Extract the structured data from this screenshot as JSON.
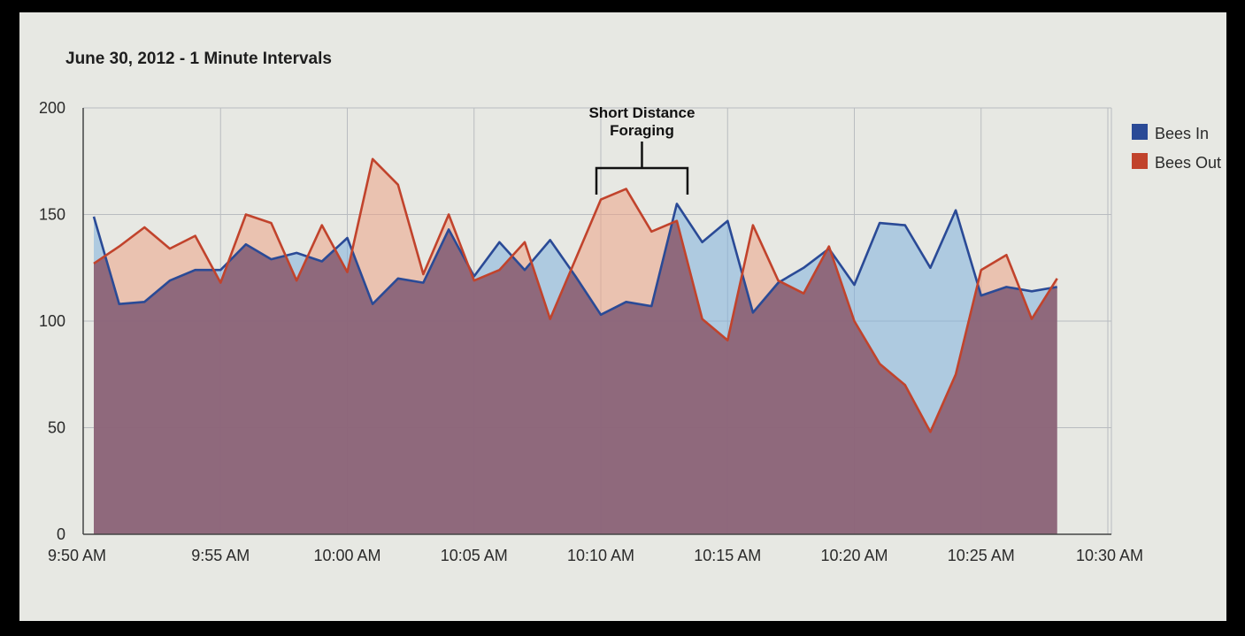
{
  "chart_data": {
    "type": "area",
    "title": "June 30, 2012 - 1 Minute Intervals",
    "xlabel": "",
    "ylabel": "",
    "ylim": [
      0,
      200
    ],
    "yticks": [
      0,
      50,
      100,
      150,
      200
    ],
    "xtick_labels": [
      "9:50 AM",
      "9:55 AM",
      "10:00 AM",
      "10:05 AM",
      "10:10 AM",
      "10:15 AM",
      "10:20 AM",
      "10:25 AM",
      "10:30 AM"
    ],
    "x_minutes_start": "9:50 AM",
    "x_interval_minutes": 1,
    "grid": true,
    "legend_position": "right",
    "series": [
      {
        "name": "Bees In",
        "color": "#2a4a96",
        "fill": "#7fb0de",
        "values": [
          149,
          108,
          109,
          119,
          124,
          124,
          136,
          129,
          132,
          128,
          139,
          108,
          120,
          118,
          143,
          121,
          137,
          124,
          138,
          121,
          103,
          109,
          107,
          155,
          137,
          147,
          104,
          118,
          125,
          134,
          117,
          146,
          145,
          125,
          152,
          112,
          116,
          114,
          116
        ]
      },
      {
        "name": "Bees Out",
        "color": "#c1432c",
        "fill": "#eda287",
        "values": [
          127,
          135,
          144,
          134,
          140,
          118,
          150,
          146,
          119,
          145,
          123,
          176,
          164,
          122,
          150,
          119,
          124,
          137,
          101,
          129,
          157,
          162,
          142,
          147,
          101,
          91,
          145,
          119,
          113,
          135,
          100,
          80,
          70,
          48,
          75,
          124,
          131,
          101,
          120
        ]
      }
    ],
    "annotation": {
      "text_line1": "Short Distance",
      "text_line2": "Foraging",
      "x_start": 20,
      "x_end": 23
    }
  }
}
